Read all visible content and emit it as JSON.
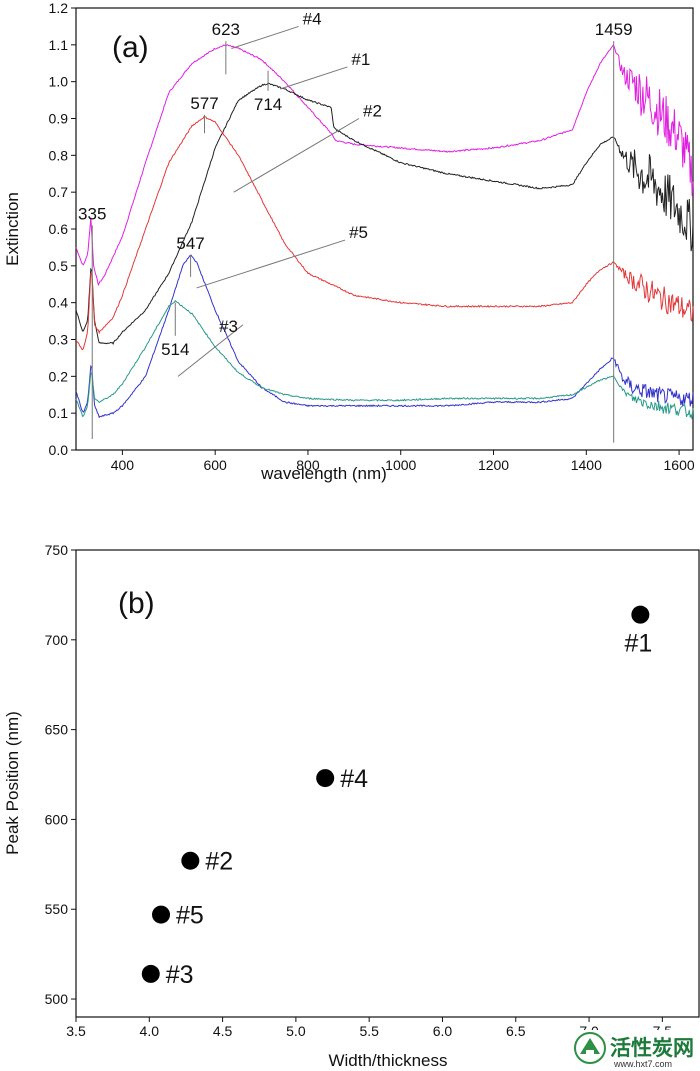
{
  "chart_data": [
    {
      "panel": "(a)",
      "type": "line",
      "xlabel": "wavelength (nm)",
      "ylabel": "Extinction",
      "xlim": [
        300,
        1630
      ],
      "ylim": [
        0.0,
        1.2
      ],
      "xticks": [
        400,
        600,
        800,
        1000,
        1200,
        1400,
        1600
      ],
      "yticks": [
        0.0,
        0.1,
        0.2,
        0.3,
        0.4,
        0.5,
        0.6,
        0.7,
        0.8,
        0.9,
        1.0,
        1.1,
        1.2
      ],
      "grid": false,
      "series": [
        {
          "name": "#4",
          "color": "#e020e0",
          "x": [
            300,
            315,
            325,
            332,
            338,
            348,
            360,
            400,
            450,
            500,
            550,
            600,
            623,
            650,
            700,
            750,
            800,
            850,
            860,
            900,
            1000,
            1100,
            1200,
            1300,
            1370,
            1400,
            1430,
            1459,
            1480,
            1500,
            1550,
            1600,
            1630
          ],
          "y": [
            0.55,
            0.5,
            0.53,
            0.63,
            0.5,
            0.45,
            0.47,
            0.58,
            0.78,
            0.97,
            1.05,
            1.09,
            1.1,
            1.09,
            1.06,
            1.0,
            0.93,
            0.86,
            0.84,
            0.83,
            0.82,
            0.81,
            0.82,
            0.84,
            0.87,
            0.97,
            1.05,
            1.1,
            1.02,
            1.0,
            0.93,
            0.85,
            0.75
          ],
          "noise_from": 1460,
          "noise_amp": 0.07
        },
        {
          "name": "#1",
          "color": "#222222",
          "x": [
            300,
            315,
            325,
            333,
            340,
            350,
            380,
            400,
            450,
            500,
            550,
            600,
            650,
            700,
            714,
            750,
            800,
            850,
            855,
            860,
            900,
            1000,
            1100,
            1200,
            1300,
            1370,
            1400,
            1430,
            1459,
            1480,
            1500,
            1550,
            1600,
            1630
          ],
          "y": [
            0.38,
            0.32,
            0.35,
            0.51,
            0.35,
            0.29,
            0.29,
            0.32,
            0.38,
            0.48,
            0.62,
            0.82,
            0.95,
            0.99,
            0.995,
            0.98,
            0.95,
            0.93,
            0.88,
            0.87,
            0.84,
            0.78,
            0.75,
            0.73,
            0.71,
            0.72,
            0.78,
            0.83,
            0.85,
            0.8,
            0.77,
            0.72,
            0.65,
            0.6
          ],
          "noise_from": 1460,
          "noise_amp": 0.07
        },
        {
          "name": "#2",
          "color": "#e03a3a",
          "x": [
            300,
            315,
            325,
            333,
            340,
            350,
            380,
            400,
            450,
            500,
            550,
            577,
            600,
            650,
            700,
            750,
            800,
            900,
            1000,
            1100,
            1200,
            1300,
            1370,
            1400,
            1430,
            1459,
            1480,
            1500,
            1550,
            1600,
            1630
          ],
          "y": [
            0.3,
            0.27,
            0.32,
            0.5,
            0.34,
            0.32,
            0.36,
            0.42,
            0.6,
            0.78,
            0.88,
            0.905,
            0.89,
            0.8,
            0.68,
            0.56,
            0.48,
            0.42,
            0.4,
            0.39,
            0.39,
            0.39,
            0.4,
            0.45,
            0.49,
            0.51,
            0.48,
            0.46,
            0.42,
            0.39,
            0.37
          ],
          "noise_from": 1460,
          "noise_amp": 0.035
        },
        {
          "name": "#5",
          "color": "#3333cc",
          "x": [
            300,
            315,
            325,
            333,
            340,
            350,
            380,
            400,
            450,
            500,
            530,
            547,
            560,
            600,
            650,
            700,
            750,
            800,
            850,
            900,
            1000,
            1100,
            1200,
            1300,
            1370,
            1400,
            1430,
            1459,
            1480,
            1500,
            1550,
            1600,
            1630
          ],
          "y": [
            0.16,
            0.1,
            0.13,
            0.24,
            0.12,
            0.09,
            0.1,
            0.12,
            0.2,
            0.38,
            0.5,
            0.53,
            0.51,
            0.38,
            0.24,
            0.17,
            0.13,
            0.12,
            0.12,
            0.12,
            0.12,
            0.12,
            0.13,
            0.13,
            0.14,
            0.18,
            0.22,
            0.25,
            0.19,
            0.17,
            0.15,
            0.14,
            0.14
          ],
          "noise_from": 1440,
          "noise_amp": 0.022
        },
        {
          "name": "#3",
          "color": "#2a9a8a",
          "x": [
            300,
            315,
            325,
            333,
            340,
            350,
            380,
            400,
            450,
            500,
            514,
            550,
            600,
            650,
            700,
            750,
            800,
            900,
            1000,
            1100,
            1200,
            1300,
            1370,
            1400,
            1430,
            1459,
            1480,
            1500,
            1550,
            1600,
            1630
          ],
          "y": [
            0.14,
            0.09,
            0.12,
            0.22,
            0.14,
            0.13,
            0.15,
            0.18,
            0.28,
            0.39,
            0.405,
            0.37,
            0.28,
            0.21,
            0.17,
            0.15,
            0.14,
            0.135,
            0.135,
            0.14,
            0.14,
            0.14,
            0.15,
            0.17,
            0.19,
            0.2,
            0.16,
            0.14,
            0.12,
            0.11,
            0.1
          ],
          "noise_from": 1460,
          "noise_amp": 0.018
        }
      ],
      "annotations": [
        {
          "text": "335",
          "x": 335,
          "y": 0.63,
          "line_top": 0.61,
          "line_bottom": 0.03
        },
        {
          "text": "623",
          "x": 623,
          "y": 1.1,
          "line_top": 1.11,
          "line_bottom": 1.02
        },
        {
          "text": "714",
          "x": 714,
          "y": 1.0,
          "line_top": 1.03,
          "line_bottom": 0.975
        },
        {
          "text": "577",
          "x": 577,
          "y": 0.905,
          "line_top": 0.91,
          "line_bottom": 0.86
        },
        {
          "text": "547",
          "x": 547,
          "y": 0.53,
          "line_top": 0.53,
          "line_bottom": 0.47
        },
        {
          "text": "514",
          "x": 514,
          "y": 0.405,
          "line_top": 0.4,
          "line_bottom": 0.31
        },
        {
          "text": "1459",
          "x": 1459,
          "y": 1.1,
          "line_top": 1.11,
          "line_bottom": 0.02
        }
      ],
      "series_labels": [
        {
          "text": "#4",
          "x1": 635,
          "y1": 1.09,
          "x2": 780,
          "y2": 1.15
        },
        {
          "text": "#1",
          "x1": 740,
          "y1": 0.98,
          "x2": 885,
          "y2": 1.04
        },
        {
          "text": "#2",
          "x1": 640,
          "y1": 0.7,
          "x2": 910,
          "y2": 0.9
        },
        {
          "text": "#5",
          "x1": 560,
          "y1": 0.44,
          "x2": 880,
          "y2": 0.57
        },
        {
          "text": "#3",
          "x1": 520,
          "y1": 0.2,
          "x2": 660,
          "y2": 0.34
        }
      ]
    },
    {
      "panel": "(b)",
      "type": "scatter",
      "xlabel": "Width/thickness",
      "ylabel": "Peak Position (nm)",
      "xlim": [
        3.5,
        7.75
      ],
      "ylim": [
        490,
        750
      ],
      "xticks": [
        3.5,
        4.0,
        4.5,
        5.0,
        5.5,
        6.0,
        6.5,
        7.0,
        7.5
      ],
      "yticks": [
        500,
        550,
        600,
        650,
        700,
        750
      ],
      "grid": false,
      "points": [
        {
          "label": "#1",
          "x": 7.35,
          "y": 714,
          "label_pos": "below"
        },
        {
          "label": "#4",
          "x": 5.2,
          "y": 623,
          "label_pos": "right"
        },
        {
          "label": "#2",
          "x": 4.28,
          "y": 577,
          "label_pos": "right"
        },
        {
          "label": "#5",
          "x": 4.08,
          "y": 547,
          "label_pos": "right"
        },
        {
          "label": "#3",
          "x": 4.01,
          "y": 514,
          "label_pos": "right"
        }
      ]
    }
  ],
  "watermark": {
    "text": "活性炭网",
    "url": "www.hxt7.com"
  }
}
